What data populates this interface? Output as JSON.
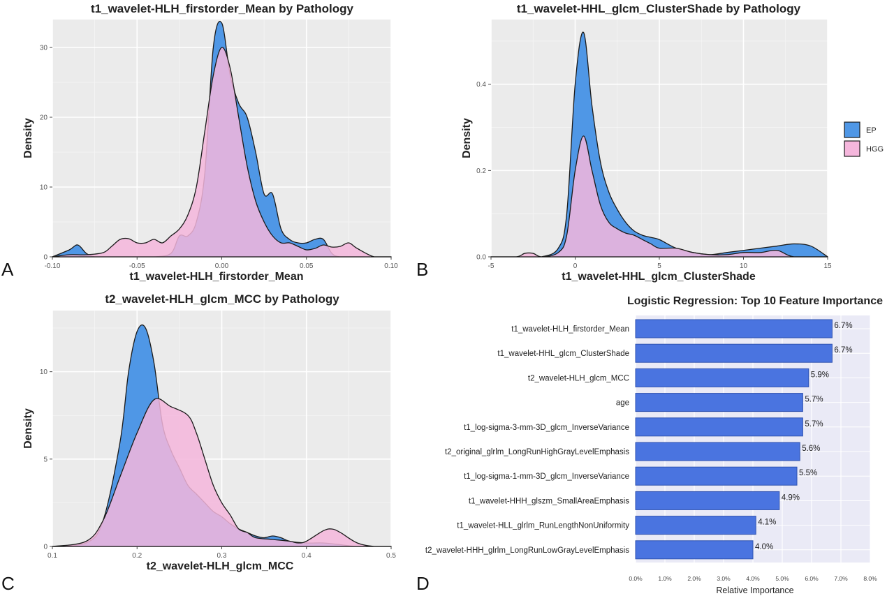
{
  "panel_letters": [
    "A",
    "B",
    "C",
    "D"
  ],
  "legend": {
    "entries": [
      {
        "label": "EP",
        "color": "#4f97e6"
      },
      {
        "label": "HGG",
        "color": "#f5b6dc"
      }
    ]
  },
  "colors": {
    "ep_fill": "#4f97e6",
    "hgg_fill": "#f5b6dc",
    "panel_bg": "#ebebeb",
    "bar_fill": "#4a74e0",
    "bar_stroke": "#2f52b0",
    "bar_panel_bg": "#eaeaf6"
  },
  "chart_data": [
    {
      "type": "area",
      "title": "t1_wavelet-HLH_firstorder_Mean by Pathology",
      "xlabel": "t1_wavelet-HLH_firstorder_Mean",
      "ylabel": "Density",
      "xlim": [
        -0.1,
        0.1
      ],
      "ylim": [
        0,
        34
      ],
      "xticks": [
        -0.1,
        -0.05,
        0.0,
        0.05,
        0.1
      ],
      "xtick_labels": [
        "-0.10",
        "-0.05",
        "0.00",
        "0.05",
        "0.10"
      ],
      "yticks": [
        0,
        10,
        20,
        30
      ],
      "ytick_labels": [
        "0",
        "10",
        "20",
        "30"
      ],
      "grid": true,
      "series": [
        {
          "name": "EP",
          "x": [
            -0.1,
            -0.09,
            -0.085,
            -0.08,
            -0.075,
            -0.07,
            -0.06,
            -0.05,
            -0.04,
            -0.03,
            -0.025,
            -0.02,
            -0.015,
            -0.01,
            -0.005,
            0.0,
            0.005,
            0.01,
            0.015,
            0.02,
            0.025,
            0.03,
            0.035,
            0.04,
            0.045,
            0.05,
            0.055,
            0.06,
            0.065,
            0.07,
            0.08,
            0.09,
            0.1
          ],
          "y": [
            0,
            1,
            1.7,
            0.5,
            0,
            0,
            0,
            0,
            0,
            0.5,
            3,
            3,
            5,
            12,
            30,
            33.5,
            26,
            22,
            20,
            15,
            9,
            9,
            4,
            2.5,
            2,
            2,
            2.5,
            2.5,
            0.5,
            0,
            0,
            0,
            0
          ]
        },
        {
          "name": "HGG",
          "x": [
            -0.1,
            -0.09,
            -0.08,
            -0.07,
            -0.065,
            -0.06,
            -0.055,
            -0.05,
            -0.045,
            -0.04,
            -0.035,
            -0.03,
            -0.025,
            -0.02,
            -0.015,
            -0.01,
            -0.005,
            0.0,
            0.005,
            0.01,
            0.015,
            0.02,
            0.025,
            0.03,
            0.035,
            0.04,
            0.045,
            0.05,
            0.055,
            0.06,
            0.065,
            0.07,
            0.075,
            0.08,
            0.09,
            0.1
          ],
          "y": [
            0,
            0.3,
            0.3,
            0.6,
            1.5,
            2.5,
            2.6,
            2,
            2,
            2.5,
            2,
            3,
            4,
            6,
            10,
            18,
            26,
            30,
            27,
            20,
            13,
            8,
            5,
            3,
            2,
            2,
            1.5,
            1,
            1.2,
            1.7,
            1.4,
            1.5,
            2,
            1.2,
            0,
            0
          ]
        }
      ]
    },
    {
      "type": "area",
      "title": "t1_wavelet-HHL_glcm_ClusterShade by Pathology",
      "xlabel": "t1_wavelet-HHL_glcm_ClusterShade",
      "ylabel": "Density",
      "xlim": [
        -5,
        15
      ],
      "ylim": [
        0,
        0.55
      ],
      "xticks": [
        -5,
        0,
        5,
        10,
        15
      ],
      "xtick_labels": [
        "-5",
        "0",
        "5",
        "10",
        "15"
      ],
      "yticks": [
        0.0,
        0.2,
        0.4
      ],
      "ytick_labels": [
        "0.0",
        "0.2",
        "0.4"
      ],
      "grid": true,
      "series": [
        {
          "name": "EP",
          "x": [
            -5,
            -3,
            -2,
            -1,
            -0.5,
            0,
            0.5,
            1,
            1.5,
            2,
            2.5,
            3,
            3.5,
            4,
            4.5,
            5,
            6,
            7,
            8,
            9,
            10,
            11,
            12,
            13,
            14,
            15
          ],
          "y": [
            0,
            0,
            0,
            0.02,
            0.1,
            0.4,
            0.52,
            0.35,
            0.22,
            0.15,
            0.11,
            0.08,
            0.06,
            0.05,
            0.045,
            0.04,
            0.02,
            0.01,
            0.005,
            0.01,
            0.015,
            0.02,
            0.025,
            0.03,
            0.025,
            0
          ]
        },
        {
          "name": "HGG",
          "x": [
            -5,
            -3.5,
            -3,
            -2.5,
            -2,
            -1,
            -0.5,
            0,
            0.5,
            1,
            1.5,
            2,
            2.5,
            3,
            3.5,
            4,
            4.5,
            5,
            6,
            7,
            8,
            9,
            10,
            11,
            12,
            13,
            15
          ],
          "y": [
            0,
            0,
            0.008,
            0.008,
            0,
            0.01,
            0.05,
            0.2,
            0.28,
            0.2,
            0.12,
            0.08,
            0.065,
            0.055,
            0.05,
            0.04,
            0.03,
            0.02,
            0.02,
            0.01,
            0.005,
            0.005,
            0.01,
            0.01,
            0.015,
            0,
            0
          ]
        }
      ]
    },
    {
      "type": "area",
      "title": "t2_wavelet-HLH_glcm_MCC by Pathology",
      "xlabel": "t2_wavelet-HLH_glcm_MCC",
      "ylabel": "Density",
      "xlim": [
        0.1,
        0.5
      ],
      "ylim": [
        0,
        13.5
      ],
      "xticks": [
        0.1,
        0.2,
        0.3,
        0.4,
        0.5
      ],
      "xtick_labels": [
        "0.1",
        "0.2",
        "0.3",
        "0.4",
        "0.5"
      ],
      "yticks": [
        0,
        5,
        10
      ],
      "ytick_labels": [
        "0",
        "5",
        "10"
      ],
      "grid": true,
      "series": [
        {
          "name": "EP",
          "x": [
            0.1,
            0.14,
            0.16,
            0.18,
            0.19,
            0.2,
            0.21,
            0.22,
            0.23,
            0.24,
            0.25,
            0.26,
            0.27,
            0.28,
            0.29,
            0.3,
            0.31,
            0.32,
            0.33,
            0.34,
            0.35,
            0.36,
            0.37,
            0.38,
            0.4,
            0.42,
            0.44,
            0.46,
            0.5
          ],
          "y": [
            0,
            0.2,
            1.5,
            6,
            10,
            12.3,
            12.5,
            10.5,
            7,
            5.5,
            4.5,
            3.5,
            3,
            2.5,
            2,
            1.7,
            1.3,
            1,
            0.8,
            0.6,
            0.5,
            0.6,
            0.5,
            0.3,
            0.2,
            0.2,
            0.1,
            0,
            0
          ]
        },
        {
          "name": "HGG",
          "x": [
            0.1,
            0.14,
            0.16,
            0.18,
            0.2,
            0.22,
            0.24,
            0.26,
            0.27,
            0.28,
            0.29,
            0.3,
            0.31,
            0.32,
            0.33,
            0.34,
            0.36,
            0.38,
            0.39,
            0.4,
            0.42,
            0.43,
            0.44,
            0.46,
            0.48,
            0.5
          ],
          "y": [
            0,
            0.3,
            1.5,
            4,
            6.5,
            8.4,
            8,
            7.5,
            6.5,
            5,
            3.5,
            2.5,
            1.8,
            1,
            0.8,
            0.5,
            0.4,
            0.3,
            0.2,
            0.3,
            0.9,
            1.0,
            0.8,
            0.2,
            0,
            0
          ]
        }
      ]
    },
    {
      "type": "bar",
      "orientation": "horizontal",
      "title": "Logistic Regression: Top 10 Feature Importance",
      "xlabel": "Relative Importance",
      "ylabel": "",
      "xlim": [
        0,
        0.08
      ],
      "xticks": [
        0,
        0.01,
        0.02,
        0.03,
        0.04,
        0.05,
        0.06,
        0.07,
        0.08
      ],
      "xtick_labels": [
        "0.0%",
        "1.0%",
        "2.0%",
        "3.0%",
        "4.0%",
        "5.0%",
        "6.0%",
        "7.0%",
        "8.0%"
      ],
      "categories": [
        "t1_wavelet-HLH_firstorder_Mean",
        "t1_wavelet-HHL_glcm_ClusterShade",
        "t2_wavelet-HLH_glcm_MCC",
        "age",
        "t1_log-sigma-3-mm-3D_glcm_InverseVariance",
        "t2_original_glrlm_LongRunHighGrayLevelEmphasis",
        "t1_log-sigma-1-mm-3D_glcm_InverseVariance",
        "t1_wavelet-HHH_glszm_SmallAreaEmphasis",
        "t1_wavelet-HLL_glrlm_RunLengthNonUniformity",
        "t2_wavelet-HHH_glrlm_LongRunLowGrayLevelEmphasis"
      ],
      "values": [
        0.067,
        0.067,
        0.059,
        0.057,
        0.057,
        0.056,
        0.055,
        0.049,
        0.041,
        0.04
      ],
      "value_labels": [
        "6.7%",
        "6.7%",
        "5.9%",
        "5.7%",
        "5.7%",
        "5.6%",
        "5.5%",
        "4.9%",
        "4.1%",
        "4.0%"
      ],
      "grid": true
    }
  ]
}
